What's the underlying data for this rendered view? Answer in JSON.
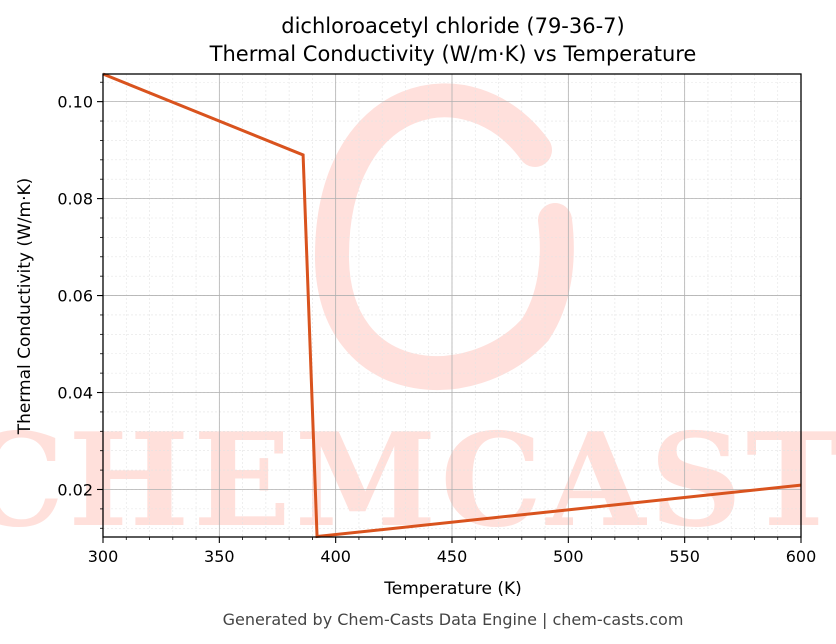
{
  "chart_data": {
    "type": "line",
    "title_line1": "dichloroacetyl chloride (79-36-7)",
    "title_line2": "Thermal Conductivity (W/m·K) vs Temperature",
    "xlabel": "Temperature (K)",
    "ylabel": "Thermal Conductivity (W/m·K)",
    "xlim": [
      300,
      600
    ],
    "ylim": [
      0.0102,
      0.1057
    ],
    "x_ticks": [
      300,
      350,
      400,
      450,
      500,
      550,
      600
    ],
    "y_ticks": [
      0.02,
      0.04,
      0.06,
      0.08,
      0.1
    ],
    "x_tick_labels": [
      "300",
      "350",
      "400",
      "450",
      "500",
      "550",
      "600"
    ],
    "y_tick_labels": [
      "0.02",
      "0.04",
      "0.06",
      "0.08",
      "0.10"
    ],
    "grid": true,
    "line_color": "#d9531e",
    "series": [
      {
        "x": [
          300,
          386,
          392,
          600
        ],
        "y": [
          0.1057,
          0.089,
          0.0103,
          0.0209
        ]
      }
    ]
  },
  "watermark": {
    "text": "CHEMCASTS",
    "color": "#ffd6d0"
  },
  "footer": "Generated by Chem-Casts Data Engine | chem-casts.com"
}
